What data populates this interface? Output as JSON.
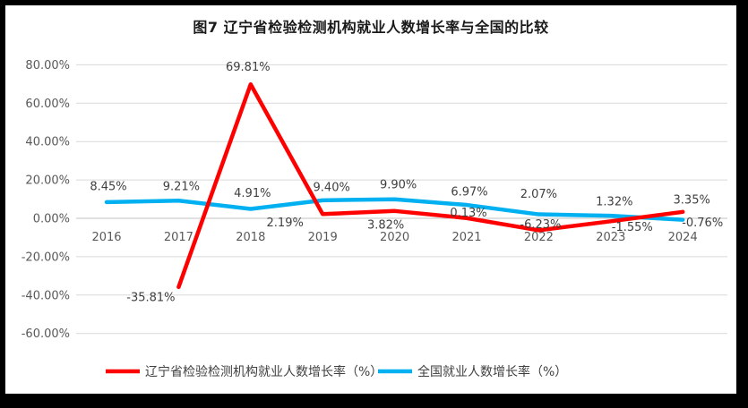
{
  "window": {
    "border_color": "#000000",
    "canvas_color": "#ffffff"
  },
  "chart_data": {
    "type": "line",
    "title": "图7  辽宁省检验检测机构就业人数增长率与全国的比较",
    "categories": [
      "2016",
      "2017",
      "2018",
      "2019",
      "2020",
      "2021",
      "2022",
      "2023",
      "2024"
    ],
    "y_axis": {
      "tick_labels": [
        "80.00%",
        "60.00%",
        "40.00%",
        "20.00%",
        "0.00%",
        "-20.00%",
        "-40.00%",
        "-60.00%"
      ],
      "max": 80,
      "min": -60,
      "step": 20
    },
    "grid": true,
    "legend_position": "bottom",
    "series": [
      {
        "name": "全国就业人数增长率（%）",
        "color": "#00B0F0",
        "values": [
          8.45,
          9.21,
          4.91,
          9.4,
          9.9,
          6.97,
          2.07,
          1.32,
          -0.76
        ],
        "point_labels": [
          "8.45%",
          "9.21%",
          "4.91%",
          "9.40%",
          "9.90%",
          "6.97%",
          "2.07%",
          "1.32%",
          "-0.76%"
        ],
        "label_offsets": [
          [
            2,
            -18
          ],
          [
            3,
            -16
          ],
          [
            2,
            -18
          ],
          [
            10,
            -15
          ],
          [
            4,
            -17
          ],
          [
            3,
            -15
          ],
          [
            0,
            -23
          ],
          [
            4,
            -16
          ],
          [
            22,
            3
          ]
        ]
      },
      {
        "name": "辽宁省检验检测机构就业人数增长率（%）",
        "color": "#FF0000",
        "values": [
          null,
          -35.81,
          69.81,
          2.19,
          3.82,
          0.13,
          -6.23,
          -1.55,
          3.35
        ],
        "point_labels": [
          "",
          "-35.81%",
          "69.81%",
          "2.19%",
          "3.82%",
          "0.13%",
          "-6.23%",
          "-1.55%",
          "3.35%"
        ],
        "label_offsets": [
          [
            0,
            0
          ],
          [
            -31,
            11
          ],
          [
            -3,
            -20
          ],
          [
            -42,
            9
          ],
          [
            -10,
            15
          ],
          [
            2,
            -6
          ],
          [
            2,
            -7
          ],
          [
            24,
            6
          ],
          [
            10,
            -14
          ]
        ]
      }
    ],
    "legend_order": [
      1,
      0
    ]
  }
}
